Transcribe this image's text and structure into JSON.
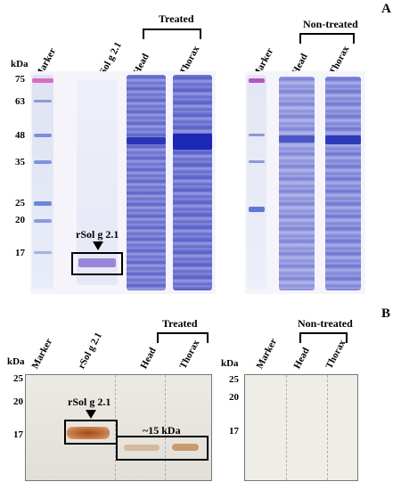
{
  "panel_a": {
    "letter": "A",
    "kda_label": "kDa",
    "markers": [
      "75",
      "63",
      "48",
      "35",
      "25",
      "20",
      "17"
    ],
    "lanes": {
      "marker": "Marker",
      "rsol": "rSol g 2.1",
      "head": "Head",
      "thorax": "Thorax",
      "marker2": "Marker",
      "head2": "Head",
      "thorax2": "Thorax"
    },
    "groups": {
      "treated": "Treated",
      "nontreated": "Non-treated"
    },
    "annotation": "rSol g 2.1",
    "colors": {
      "stain": "#4a4fc0",
      "marker_pink": "#e060c0"
    }
  },
  "panel_b": {
    "letter": "B",
    "kda_label": "kDa",
    "kda_label2": "kDa",
    "markers": [
      "25",
      "20",
      "17"
    ],
    "markers2": [
      "25",
      "20",
      "17"
    ],
    "lanes": {
      "marker": "Marker",
      "rsol": "rSol g 2.1",
      "head": "Head",
      "thorax": "Thorax",
      "marker2": "Marker",
      "head2": "Head",
      "thorax2": "Thorax"
    },
    "groups": {
      "treated": "Treated",
      "nontreated": "Non-treated"
    },
    "annotation": "rSol g 2.1",
    "annotation2": "~15 kDa",
    "colors": {
      "band": "#b8612a"
    }
  }
}
